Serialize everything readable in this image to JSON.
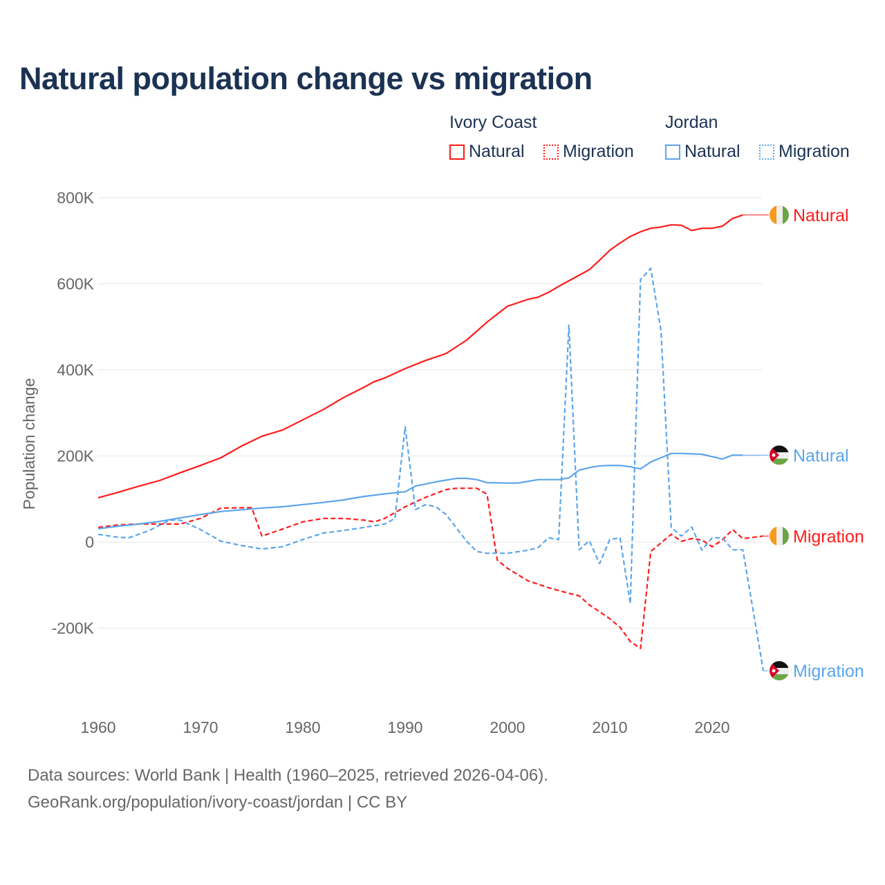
{
  "title": "Natural population change vs migration",
  "legend": {
    "groups": [
      {
        "name": "Ivory Coast",
        "color": "#ff1a1a",
        "items": [
          "Natural",
          "Migration"
        ]
      },
      {
        "name": "Jordan",
        "color": "#5ba4ea",
        "items": [
          "Natural",
          "Migration"
        ]
      }
    ]
  },
  "footer": {
    "line1": "Data sources: World Bank | Health (1960–2025, retrieved 2026-04-06).",
    "line2": "GeoRank.org/population/ivory-coast/jordan | CC BY"
  },
  "chart_data": {
    "type": "line",
    "title": "Natural population change vs migration",
    "xlabel": "",
    "ylabel": "Population change",
    "xlim": [
      1960,
      2025
    ],
    "ylim": [
      -300000,
      800000
    ],
    "x_ticks": [
      "1960",
      "1970",
      "1980",
      "1990",
      "2000",
      "2010",
      "2020"
    ],
    "y_ticks": [
      {
        "v": 800000,
        "label": "800K"
      },
      {
        "v": 600000,
        "label": "600K"
      },
      {
        "v": 400000,
        "label": "400K"
      },
      {
        "v": 200000,
        "label": "200K"
      },
      {
        "v": 0,
        "label": "0"
      },
      {
        "v": -200000,
        "label": "-200K"
      }
    ],
    "grid": true,
    "series": [
      {
        "name": "Ivory Coast Natural",
        "country": "Ivory Coast",
        "kind": "Natural",
        "color": "#ff1a1a",
        "dashed": false,
        "end_label": "Natural",
        "flag": "ivory-coast",
        "x": [
          1960,
          1962,
          1964,
          1966,
          1968,
          1970,
          1972,
          1974,
          1976,
          1978,
          1980,
          1982,
          1984,
          1986,
          1987,
          1988,
          1990,
          1992,
          1994,
          1996,
          1998,
          2000,
          2002,
          2003,
          2004,
          2005,
          2006,
          2008,
          2009,
          2010,
          2011,
          2012,
          2013,
          2014,
          2015,
          2016,
          2017,
          2018,
          2019,
          2020,
          2021,
          2022,
          2023
        ],
        "y": [
          103000,
          116000,
          130000,
          143000,
          161000,
          178000,
          196000,
          223000,
          246000,
          260000,
          284000,
          308000,
          336000,
          360000,
          373000,
          381000,
          403000,
          422000,
          438000,
          469000,
          511000,
          548000,
          564000,
          569000,
          580000,
          594000,
          607000,
          633000,
          655000,
          678000,
          695000,
          710000,
          721000,
          729000,
          732000,
          737000,
          736000,
          724000,
          729000,
          729000,
          734000,
          752000,
          760000
        ]
      },
      {
        "name": "Ivory Coast Migration",
        "country": "Ivory Coast",
        "kind": "Migration",
        "color": "#ff1a1a",
        "dashed": true,
        "end_label": "Migration",
        "flag": "ivory-coast",
        "x": [
          1960,
          1962,
          1964,
          1966,
          1968,
          1970,
          1972,
          1975,
          1976,
          1978,
          1980,
          1982,
          1984,
          1986,
          1987,
          1988,
          1990,
          1992,
          1994,
          1995,
          1997,
          1998,
          1999,
          2000,
          2002,
          2004,
          2006,
          2007,
          2008,
          2009,
          2010,
          2011,
          2012,
          2013,
          2014,
          2015,
          2016,
          2017,
          2018,
          2019,
          2020,
          2021,
          2022,
          2023,
          2024,
          2025
        ],
        "y": [
          34000,
          40000,
          42000,
          42000,
          42000,
          55000,
          79000,
          80000,
          14000,
          30000,
          47000,
          55000,
          55000,
          51000,
          47000,
          55000,
          82000,
          104000,
          122000,
          125000,
          125000,
          111000,
          -42000,
          -61000,
          -90000,
          -106000,
          -119000,
          -125000,
          -146000,
          -162000,
          -178000,
          -198000,
          -231000,
          -247000,
          -22000,
          -2000,
          18000,
          2000,
          8000,
          5000,
          -11000,
          5000,
          29000,
          8000,
          11000,
          14000
        ]
      },
      {
        "name": "Jordan Natural",
        "country": "Jordan",
        "kind": "Natural",
        "color": "#5ba4ea",
        "dashed": false,
        "end_label": "Natural",
        "flag": "jordan",
        "x": [
          1960,
          1962,
          1964,
          1966,
          1968,
          1970,
          1972,
          1974,
          1976,
          1978,
          1980,
          1982,
          1984,
          1986,
          1988,
          1990,
          1991,
          1993,
          1995,
          1996,
          1997,
          1998,
          2000,
          2001,
          2003,
          2005,
          2006,
          2007,
          2008,
          2009,
          2010,
          2011,
          2012,
          2013,
          2014,
          2015,
          2016,
          2017,
          2019,
          2021,
          2022,
          2023
        ],
        "y": [
          31000,
          37000,
          42000,
          48000,
          56000,
          64000,
          71000,
          75000,
          79000,
          82000,
          87000,
          92000,
          98000,
          106000,
          112000,
          117000,
          130000,
          140000,
          148000,
          148000,
          145000,
          138000,
          137000,
          137000,
          145000,
          145000,
          149000,
          167000,
          173000,
          177000,
          178000,
          178000,
          175000,
          170000,
          186000,
          196000,
          206000,
          206000,
          204000,
          193000,
          202000,
          202000
        ]
      },
      {
        "name": "Jordan Migration",
        "country": "Jordan",
        "kind": "Migration",
        "color": "#5ba4ea",
        "dashed": true,
        "end_label": "Migration",
        "flag": "jordan",
        "x": [
          1960,
          1962,
          1963,
          1965,
          1967,
          1968,
          1970,
          1972,
          1974,
          1976,
          1978,
          1980,
          1982,
          1984,
          1986,
          1988,
          1989,
          1990,
          1991,
          1992,
          1993,
          1994,
          1996,
          1997,
          1998,
          2000,
          2002,
          2003,
          2004,
          2005,
          2006,
          2007,
          2008,
          2009,
          2010,
          2011,
          2012,
          2013,
          2014,
          2015,
          2016,
          2017,
          2018,
          2019,
          2020,
          2021,
          2022,
          2023,
          2025
        ],
        "y": [
          18000,
          11000,
          10000,
          27000,
          51000,
          51000,
          29000,
          2000,
          -8000,
          -16000,
          -11000,
          6000,
          21000,
          27000,
          34000,
          42000,
          55000,
          268000,
          75000,
          87000,
          82000,
          64000,
          2000,
          -22000,
          -26000,
          -26000,
          -19000,
          -13000,
          10000,
          6000,
          504000,
          -18000,
          3000,
          -50000,
          6000,
          10000,
          -143000,
          610000,
          636000,
          491000,
          34000,
          14000,
          35000,
          -19000,
          10000,
          10000,
          -18000,
          -18000,
          -299000
        ]
      }
    ]
  }
}
